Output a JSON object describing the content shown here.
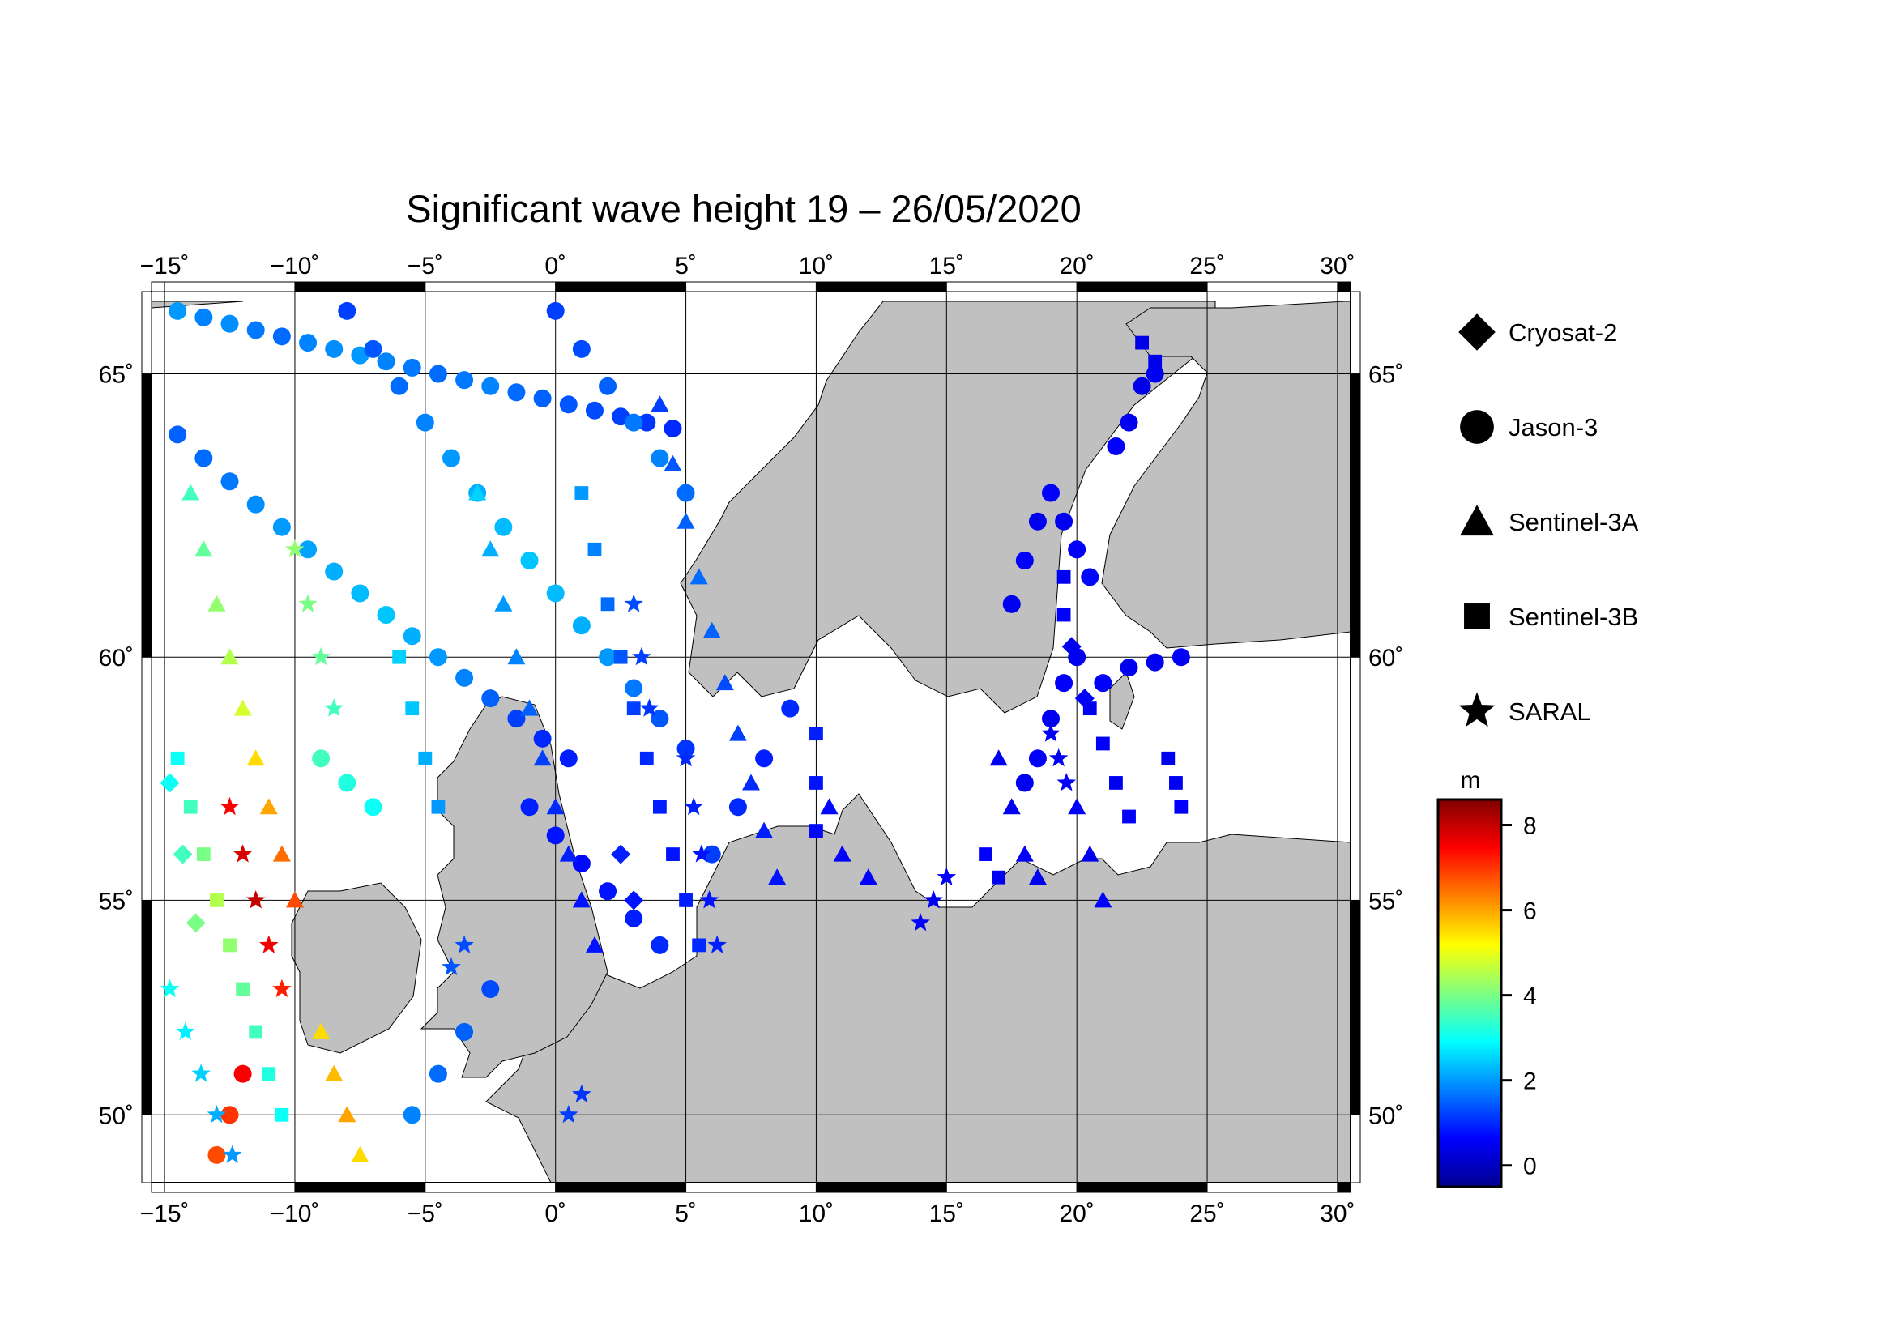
{
  "chart_data": {
    "type": "scatter",
    "title": "Significant wave height 19 – 26/05/2020",
    "xlabel": "",
    "ylabel": "",
    "projection": "mercator",
    "xlim": [
      -15.5,
      30.5
    ],
    "ylim": [
      48.3,
      66.3
    ],
    "grid": true,
    "x_ticks": [
      -15,
      -10,
      -5,
      0,
      5,
      10,
      15,
      20,
      25,
      30
    ],
    "x_tick_labels": [
      "−15˚",
      "−10˚",
      "−5˚",
      "0˚",
      "5˚",
      "10˚",
      "15˚",
      "20˚",
      "25˚",
      "30˚"
    ],
    "y_ticks": [
      50,
      55,
      60,
      65
    ],
    "y_tick_labels": [
      "50˚",
      "55˚",
      "60˚",
      "65˚"
    ],
    "legend": {
      "placement": "right",
      "entries": [
        {
          "name": "Cryosat-2",
          "marker": "diamond"
        },
        {
          "name": "Jason-3",
          "marker": "circle"
        },
        {
          "name": "Sentinel-3A",
          "marker": "triangle"
        },
        {
          "name": "Sentinel-3B",
          "marker": "square"
        },
        {
          "name": "SARAL",
          "marker": "star"
        }
      ]
    },
    "colorbar": {
      "unit": "m",
      "min": -0.5,
      "max": 8.6,
      "ticks": [
        0,
        2,
        4,
        6,
        8
      ],
      "tick_labels": [
        "0",
        "2",
        "4",
        "6",
        "8"
      ],
      "colormap": [
        "#00008f",
        "#0000ff",
        "#0080ff",
        "#00ffff",
        "#80ff80",
        "#ffff00",
        "#ff8000",
        "#ff0000",
        "#800000"
      ]
    },
    "land_color": "#c0c0c0",
    "sea_color": "#ffffff",
    "series": [
      {
        "name": "Jason-3",
        "marker": "circle",
        "points": [
          [
            -14.5,
            66.0,
            2.0
          ],
          [
            -13.5,
            65.9,
            1.8
          ],
          [
            -12.5,
            65.8,
            1.9
          ],
          [
            -11.5,
            65.7,
            1.7
          ],
          [
            -10.5,
            65.6,
            1.6
          ],
          [
            -9.5,
            65.5,
            1.8
          ],
          [
            -8.5,
            65.4,
            1.9
          ],
          [
            -7.5,
            65.3,
            2.0
          ],
          [
            -6.5,
            65.2,
            1.8
          ],
          [
            -5.5,
            65.1,
            1.7
          ],
          [
            -4.5,
            65.0,
            1.6
          ],
          [
            -3.5,
            64.9,
            1.7
          ],
          [
            -2.5,
            64.8,
            1.8
          ],
          [
            -1.5,
            64.7,
            1.6
          ],
          [
            -0.5,
            64.6,
            1.5
          ],
          [
            0.5,
            64.5,
            1.4
          ],
          [
            1.5,
            64.4,
            1.3
          ],
          [
            2.5,
            64.3,
            1.2
          ],
          [
            3.5,
            64.2,
            1.1
          ],
          [
            4.5,
            64.1,
            1.0
          ],
          [
            -14.5,
            64.0,
            1.5
          ],
          [
            -13.5,
            63.6,
            1.6
          ],
          [
            -12.5,
            63.2,
            1.7
          ],
          [
            -11.5,
            62.8,
            1.9
          ],
          [
            -10.5,
            62.4,
            2.0
          ],
          [
            -9.5,
            62.0,
            2.1
          ],
          [
            -8.5,
            61.6,
            2.2
          ],
          [
            -7.5,
            61.2,
            2.3
          ],
          [
            -6.5,
            60.8,
            2.4
          ],
          [
            -5.5,
            60.4,
            2.2
          ],
          [
            -4.5,
            60.0,
            2.0
          ],
          [
            -3.5,
            59.6,
            1.8
          ],
          [
            -2.5,
            59.2,
            1.5
          ],
          [
            -1.5,
            58.8,
            1.2
          ],
          [
            -0.5,
            58.4,
            1.0
          ],
          [
            0.5,
            58.0,
            0.9
          ],
          [
            -8.0,
            66.0,
            1.2
          ],
          [
            -7.0,
            65.4,
            1.4
          ],
          [
            -6.0,
            64.8,
            1.6
          ],
          [
            -5.0,
            64.2,
            1.8
          ],
          [
            -4.0,
            63.6,
            2.0
          ],
          [
            -3.0,
            63.0,
            2.2
          ],
          [
            -2.0,
            62.4,
            2.3
          ],
          [
            -1.0,
            61.8,
            2.4
          ],
          [
            0.0,
            61.2,
            2.3
          ],
          [
            1.0,
            60.6,
            2.2
          ],
          [
            2.0,
            60.0,
            2.0
          ],
          [
            3.0,
            59.4,
            1.7
          ],
          [
            4.0,
            58.8,
            1.4
          ],
          [
            5.0,
            58.2,
            1.1
          ],
          [
            0.0,
            66.0,
            1.2
          ],
          [
            1.0,
            65.4,
            1.3
          ],
          [
            2.0,
            64.8,
            1.5
          ],
          [
            3.0,
            64.2,
            1.7
          ],
          [
            4.0,
            63.6,
            1.8
          ],
          [
            5.0,
            63.0,
            1.6
          ],
          [
            -1.0,
            57.0,
            0.9
          ],
          [
            0.0,
            56.4,
            0.8
          ],
          [
            1.0,
            55.8,
            0.7
          ],
          [
            2.0,
            55.2,
            0.8
          ],
          [
            3.0,
            54.6,
            0.9
          ],
          [
            4.0,
            54.0,
            1.0
          ],
          [
            -2.5,
            53.0,
            1.3
          ],
          [
            -3.5,
            52.0,
            1.5
          ],
          [
            -4.5,
            51.0,
            1.6
          ],
          [
            -5.5,
            50.0,
            1.8
          ],
          [
            6.0,
            56.0,
            1.2
          ],
          [
            7.0,
            57.0,
            1.0
          ],
          [
            8.0,
            58.0,
            0.9
          ],
          [
            9.0,
            59.0,
            1.0
          ],
          [
            19.0,
            63.0,
            0.6
          ],
          [
            19.5,
            62.5,
            0.5
          ],
          [
            20.0,
            62.0,
            0.6
          ],
          [
            20.5,
            61.5,
            0.7
          ],
          [
            20.0,
            60.0,
            0.5
          ],
          [
            19.5,
            59.5,
            0.6
          ],
          [
            19.0,
            58.8,
            0.5
          ],
          [
            18.5,
            58.0,
            0.6
          ],
          [
            18.0,
            57.5,
            0.5
          ],
          [
            21.0,
            59.5,
            0.6
          ],
          [
            22.0,
            59.8,
            0.5
          ],
          [
            23.0,
            59.9,
            0.5
          ],
          [
            24.0,
            60.0,
            0.6
          ],
          [
            17.5,
            61.0,
            0.5
          ],
          [
            18.0,
            61.8,
            0.6
          ],
          [
            18.5,
            62.5,
            0.5
          ],
          [
            22.5,
            64.8,
            0.4
          ],
          [
            23.0,
            65.0,
            0.5
          ],
          [
            22.0,
            64.2,
            0.5
          ],
          [
            21.5,
            63.8,
            0.6
          ],
          [
            -12.0,
            51.0,
            7.5
          ],
          [
            -12.5,
            50.0,
            7.0
          ],
          [
            -13.0,
            49.0,
            6.8
          ],
          [
            -9.0,
            58.0,
            3.5
          ],
          [
            -8.0,
            57.5,
            3.2
          ],
          [
            -7.0,
            57.0,
            3.0
          ]
        ]
      },
      {
        "name": "Sentinel-3A",
        "marker": "triangle",
        "points": [
          [
            -14.0,
            63.0,
            3.5
          ],
          [
            -13.5,
            62.0,
            3.8
          ],
          [
            -13.0,
            61.0,
            4.2
          ],
          [
            -12.5,
            60.0,
            4.5
          ],
          [
            -12.0,
            59.0,
            4.8
          ],
          [
            -11.5,
            58.0,
            5.5
          ],
          [
            -11.0,
            57.0,
            6.0
          ],
          [
            -10.5,
            56.0,
            6.5
          ],
          [
            -10.0,
            55.0,
            6.8
          ],
          [
            -3.0,
            63.0,
            2.5
          ],
          [
            -2.5,
            62.0,
            2.2
          ],
          [
            -2.0,
            61.0,
            2.0
          ],
          [
            -1.5,
            60.0,
            1.8
          ],
          [
            -1.0,
            59.0,
            1.5
          ],
          [
            -0.5,
            58.0,
            1.2
          ],
          [
            0.0,
            57.0,
            1.0
          ],
          [
            0.5,
            56.0,
            0.9
          ],
          [
            1.0,
            55.0,
            0.8
          ],
          [
            1.5,
            54.0,
            0.8
          ],
          [
            4.0,
            64.5,
            1.2
          ],
          [
            4.5,
            63.5,
            1.4
          ],
          [
            5.0,
            62.5,
            1.5
          ],
          [
            5.5,
            61.5,
            1.6
          ],
          [
            6.0,
            60.5,
            1.5
          ],
          [
            6.5,
            59.5,
            1.3
          ],
          [
            7.0,
            58.5,
            1.2
          ],
          [
            7.5,
            57.5,
            1.0
          ],
          [
            8.0,
            56.5,
            0.9
          ],
          [
            8.5,
            55.5,
            0.8
          ],
          [
            17.0,
            58.0,
            0.5
          ],
          [
            17.5,
            57.0,
            0.5
          ],
          [
            18.0,
            56.0,
            0.6
          ],
          [
            18.5,
            55.5,
            0.5
          ],
          [
            20.0,
            57.0,
            0.6
          ],
          [
            20.5,
            56.0,
            0.5
          ],
          [
            21.0,
            55.0,
            0.6
          ],
          [
            10.5,
            57.0,
            0.7
          ],
          [
            11.0,
            56.0,
            0.6
          ],
          [
            12.0,
            55.5,
            0.6
          ],
          [
            -9.0,
            52.0,
            5.5
          ],
          [
            -8.5,
            51.0,
            5.8
          ],
          [
            -8.0,
            50.0,
            6.0
          ],
          [
            -7.5,
            49.0,
            5.5
          ]
        ]
      },
      {
        "name": "Sentinel-3B",
        "marker": "square",
        "points": [
          [
            -14.5,
            58.0,
            3.0
          ],
          [
            -14.0,
            57.0,
            3.5
          ],
          [
            -13.5,
            56.0,
            4.0
          ],
          [
            -13.0,
            55.0,
            4.5
          ],
          [
            -12.5,
            54.0,
            4.2
          ],
          [
            -12.0,
            53.0,
            3.8
          ],
          [
            -11.5,
            52.0,
            3.5
          ],
          [
            -11.0,
            51.0,
            3.2
          ],
          [
            -10.5,
            50.0,
            3.0
          ],
          [
            -6.0,
            60.0,
            2.5
          ],
          [
            -5.5,
            59.0,
            2.4
          ],
          [
            -5.0,
            58.0,
            2.2
          ],
          [
            -4.5,
            57.0,
            2.0
          ],
          [
            1.0,
            63.0,
            2.0
          ],
          [
            1.5,
            62.0,
            1.8
          ],
          [
            2.0,
            61.0,
            1.6
          ],
          [
            2.5,
            60.0,
            1.4
          ],
          [
            3.0,
            59.0,
            1.2
          ],
          [
            3.5,
            58.0,
            1.0
          ],
          [
            4.0,
            57.0,
            0.9
          ],
          [
            4.5,
            56.0,
            0.8
          ],
          [
            5.0,
            55.0,
            0.9
          ],
          [
            5.5,
            54.0,
            1.0
          ],
          [
            10.0,
            58.5,
            0.9
          ],
          [
            10.0,
            57.5,
            0.8
          ],
          [
            10.0,
            56.5,
            0.7
          ],
          [
            19.5,
            61.5,
            0.5
          ],
          [
            19.5,
            60.8,
            0.6
          ],
          [
            20.5,
            59.0,
            0.5
          ],
          [
            21.0,
            58.3,
            0.6
          ],
          [
            21.5,
            57.5,
            0.5
          ],
          [
            22.0,
            56.8,
            0.6
          ],
          [
            23.5,
            58.0,
            0.5
          ],
          [
            23.8,
            57.5,
            0.5
          ],
          [
            24.0,
            57.0,
            0.6
          ],
          [
            22.5,
            65.5,
            0.4
          ],
          [
            23.0,
            65.2,
            0.5
          ],
          [
            16.5,
            56.0,
            0.6
          ],
          [
            17.0,
            55.5,
            0.5
          ]
        ]
      },
      {
        "name": "SARAL",
        "marker": "star",
        "points": [
          [
            -14.8,
            53.0,
            3.0
          ],
          [
            -14.2,
            52.0,
            2.8
          ],
          [
            -13.6,
            51.0,
            2.5
          ],
          [
            -13.0,
            50.0,
            2.2
          ],
          [
            -12.4,
            49.0,
            2.0
          ],
          [
            -12.5,
            57.0,
            7.5
          ],
          [
            -12.0,
            56.0,
            7.8
          ],
          [
            -11.5,
            55.0,
            8.0
          ],
          [
            -11.0,
            54.0,
            7.6
          ],
          [
            -10.5,
            53.0,
            7.2
          ],
          [
            -10.0,
            62.0,
            4.2
          ],
          [
            -9.5,
            61.0,
            4.0
          ],
          [
            -9.0,
            60.0,
            3.8
          ],
          [
            -8.5,
            59.0,
            3.5
          ],
          [
            5.0,
            58.0,
            1.0
          ],
          [
            5.3,
            57.0,
            0.9
          ],
          [
            5.6,
            56.0,
            0.8
          ],
          [
            5.9,
            55.0,
            0.8
          ],
          [
            6.2,
            54.0,
            0.9
          ],
          [
            3.0,
            61.0,
            1.3
          ],
          [
            3.3,
            60.0,
            1.2
          ],
          [
            3.6,
            59.0,
            1.1
          ],
          [
            14.0,
            54.5,
            0.6
          ],
          [
            14.5,
            55.0,
            0.5
          ],
          [
            15.0,
            55.5,
            0.6
          ],
          [
            19.0,
            58.5,
            0.5
          ],
          [
            19.3,
            58.0,
            0.5
          ],
          [
            19.6,
            57.5,
            0.6
          ],
          [
            0.5,
            50.0,
            1.2
          ],
          [
            1.0,
            50.5,
            1.1
          ],
          [
            -4.0,
            53.5,
            1.4
          ],
          [
            -3.5,
            54.0,
            1.3
          ]
        ]
      },
      {
        "name": "Cryosat-2",
        "marker": "diamond",
        "points": [
          [
            -14.8,
            57.5,
            3.0
          ],
          [
            -14.3,
            56.0,
            3.5
          ],
          [
            -13.8,
            54.5,
            4.0
          ],
          [
            2.5,
            56.0,
            0.9
          ],
          [
            3.0,
            55.0,
            0.8
          ],
          [
            19.8,
            60.2,
            0.5
          ],
          [
            20.3,
            59.2,
            0.6
          ]
        ]
      }
    ]
  }
}
